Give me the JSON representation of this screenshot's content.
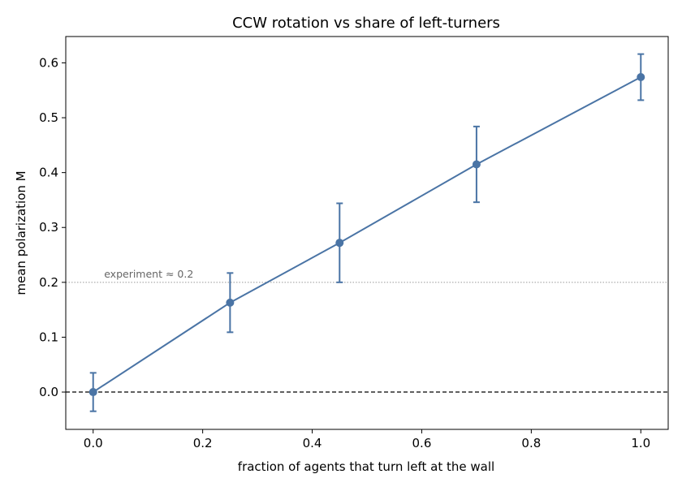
{
  "chart_data": {
    "type": "line",
    "title": "CCW rotation vs share of left-turners",
    "xlabel": "fraction of agents that turn left at the wall",
    "ylabel": "mean polarization M",
    "xlim": [
      -0.05,
      1.05
    ],
    "ylim": [
      -0.068,
      0.648
    ],
    "x_ticks": [
      0.0,
      0.2,
      0.4,
      0.6,
      0.8,
      1.0
    ],
    "x_tick_labels": [
      "0.0",
      "0.2",
      "0.4",
      "0.6",
      "0.8",
      "1.0"
    ],
    "y_ticks": [
      0.0,
      0.1,
      0.2,
      0.3,
      0.4,
      0.5,
      0.6
    ],
    "y_tick_labels": [
      "0.0",
      "0.1",
      "0.2",
      "0.3",
      "0.4",
      "0.5",
      "0.6"
    ],
    "grid": false,
    "legend": "none",
    "series": [
      {
        "x": [
          0.0,
          0.25,
          0.45,
          0.7,
          1.0
        ],
        "y": [
          0.0,
          0.163,
          0.272,
          0.415,
          0.574
        ],
        "yerr": [
          0.035,
          0.054,
          0.072,
          0.069,
          0.042
        ],
        "color": "#4a74a5"
      }
    ],
    "reference_lines": [
      {
        "y": 0.0,
        "style": "dashed",
        "color": "#000000"
      },
      {
        "y": 0.2,
        "style": "dotted",
        "color": "#999999",
        "label": "experiment ≈ 0.2"
      }
    ]
  }
}
